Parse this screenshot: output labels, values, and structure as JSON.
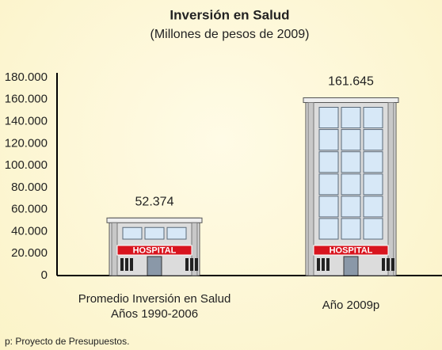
{
  "chart_data": {
    "type": "bar",
    "title": "Inversión en Salud",
    "subtitle": "(Millones de pesos de 2009)",
    "categories": [
      "Promedio Inversión en Salud\nAños 1990-2006",
      "Año 2009p"
    ],
    "values": [
      52374,
      161645
    ],
    "value_labels": [
      "52.374",
      "161.645"
    ],
    "sign_label": "HOSPITAL",
    "ylim": [
      0,
      180000
    ],
    "yticks": [
      0,
      {
        "value": 20000,
        "label": "20.000"
      },
      {
        "value": 40000,
        "label": "40.000"
      },
      {
        "value": 60000,
        "label": "60.000"
      },
      {
        "value": 80000,
        "label": "80.000"
      },
      {
        "value": 100000,
        "label": "100.000"
      },
      {
        "value": 120000,
        "label": "120.000"
      },
      {
        "value": 140000,
        "label": "140.000"
      },
      {
        "value": 160000,
        "label": "160.000"
      },
      {
        "value": 180000,
        "label": "180.000"
      }
    ],
    "grid": false,
    "note": "p: Proyecto de Presupuestos."
  }
}
